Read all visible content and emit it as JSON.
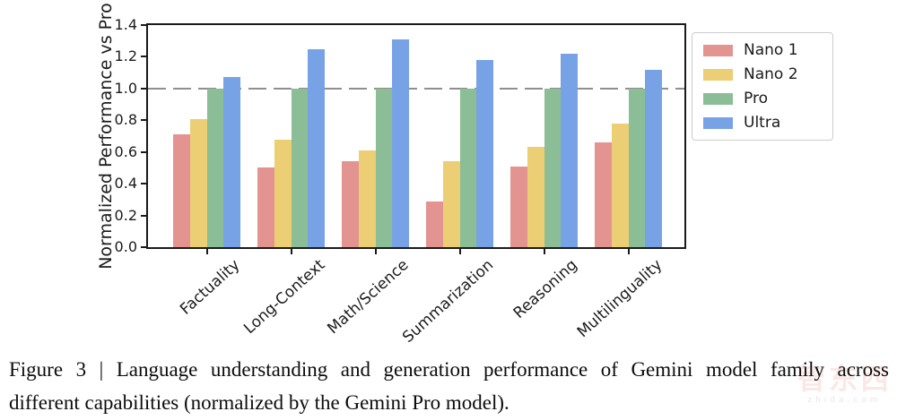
{
  "figure": {
    "caption_line1": "Figure 3 | Language understanding and generation performance of Gemini model family across",
    "caption_line2": "different capabilities (normalized by the Gemini Pro model)."
  },
  "watermark": {
    "logo_text": "智东西",
    "sub_text": "zhida.com",
    "color": "#f0b4b0"
  },
  "chart_data": {
    "type": "bar",
    "title": "",
    "xlabel": "",
    "ylabel": "Normalized Performance vs Pro",
    "ylim": [
      0.0,
      1.4
    ],
    "yticks": [
      0.0,
      0.2,
      0.4,
      0.6,
      0.8,
      1.0,
      1.2,
      1.4
    ],
    "ytick_labels": [
      "0.0",
      "0.2",
      "0.4",
      "0.6",
      "0.8",
      "1.0",
      "1.2",
      "1.4"
    ],
    "reference_line": 1.0,
    "reference_line_style": "dashed",
    "reference_line_color": "#8f8f8f",
    "grid": false,
    "legend_position": "outside-top-right",
    "categories": [
      "Factuality",
      "Long-Context",
      "Math/Science",
      "Summarization",
      "Reasoning",
      "Multilinguality"
    ],
    "series": [
      {
        "name": "Nano 1",
        "color": "#e39490",
        "values": [
          0.71,
          0.5,
          0.54,
          0.29,
          0.51,
          0.66
        ]
      },
      {
        "name": "Nano 2",
        "color": "#ecce74",
        "values": [
          0.81,
          0.68,
          0.61,
          0.54,
          0.63,
          0.78
        ]
      },
      {
        "name": "Pro",
        "color": "#8bbd97",
        "values": [
          1.0,
          1.0,
          1.0,
          1.0,
          1.0,
          1.0
        ]
      },
      {
        "name": "Ultra",
        "color": "#78a2e6",
        "values": [
          1.07,
          1.25,
          1.31,
          1.18,
          1.22,
          1.12
        ]
      }
    ]
  }
}
